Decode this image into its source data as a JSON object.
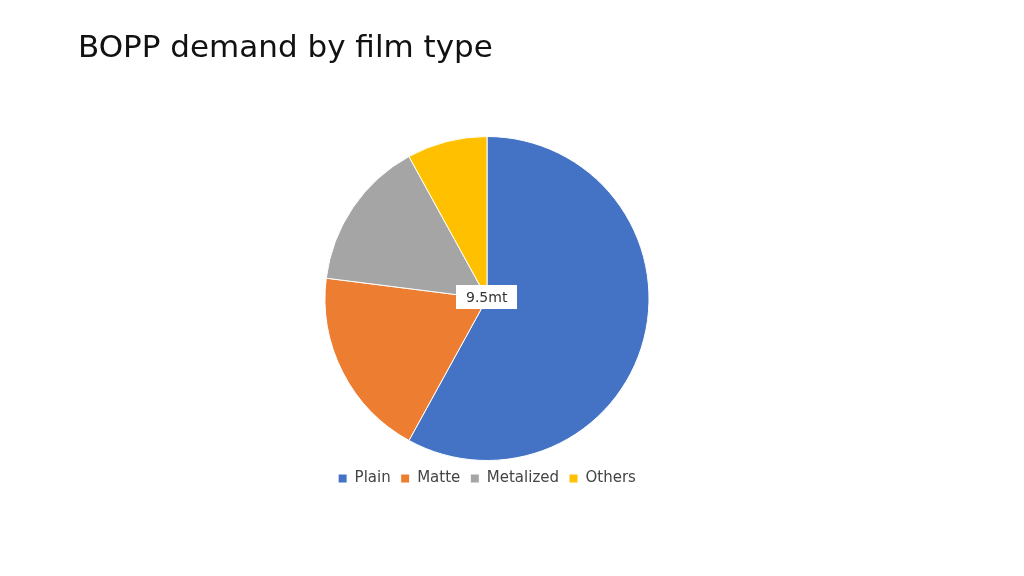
{
  "chart_data": {
    "type": "pie",
    "title": "BOPP demand by film type",
    "categories": [
      "Plain",
      "Matte",
      "Metalized",
      "Others"
    ],
    "values": [
      58,
      19,
      15,
      8
    ],
    "colors": [
      "#4472c4",
      "#ed7d31",
      "#a5a5a5",
      "#ffc000"
    ],
    "annotations": [
      "9.5mt"
    ],
    "legend": "bottom"
  }
}
